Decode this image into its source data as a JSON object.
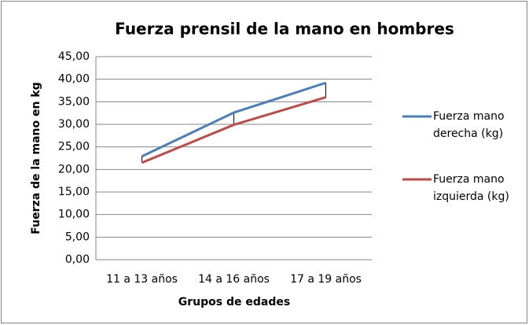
{
  "chart_data": {
    "type": "line",
    "title": "Fuerza prensil de la mano en hombres",
    "x_label": "Grupos de edades",
    "y_label": "Fuerza de la mano en kg",
    "categories": [
      "11 a 13 años",
      "14 a 16 años",
      "17 a 19 años"
    ],
    "series": [
      {
        "name": "Fuerza mano derecha (kg)",
        "color": "#4a7ebb",
        "values": [
          22.9,
          32.6,
          39.2
        ]
      },
      {
        "name": "Fuerza mano izquierda (kg)",
        "color": "#be4b48",
        "values": [
          21.5,
          29.9,
          36.0
        ]
      }
    ],
    "ylim": [
      0,
      45
    ],
    "yticks": [
      {
        "value": 0,
        "label": "0,00"
      },
      {
        "value": 5,
        "label": "5,00"
      },
      {
        "value": 10,
        "label": "10,00"
      },
      {
        "value": 15,
        "label": "15,00"
      },
      {
        "value": 20,
        "label": "20,00"
      },
      {
        "value": 25,
        "label": "25,00"
      },
      {
        "value": 30,
        "label": "30,00"
      },
      {
        "value": 35,
        "label": "35,00"
      },
      {
        "value": 40,
        "label": "40,00"
      },
      {
        "value": 45,
        "label": "45,00"
      }
    ],
    "grid": true,
    "legend": "right"
  }
}
